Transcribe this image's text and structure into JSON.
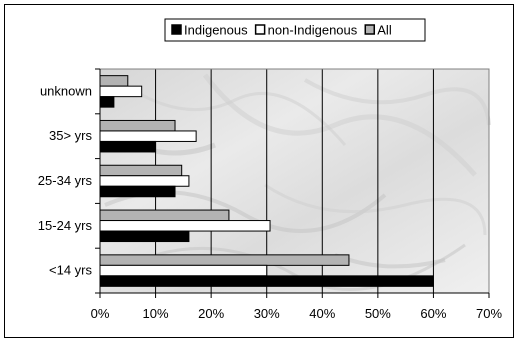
{
  "chart_data": {
    "type": "bar",
    "orientation": "horizontal",
    "categories": [
      "unknown",
      "35> yrs",
      "25-34 yrs",
      "15-24 yrs",
      "<14 yrs"
    ],
    "series": [
      {
        "name": "Indigenous",
        "color": "#000000",
        "values": [
          2.5,
          10,
          13.5,
          16,
          60
        ]
      },
      {
        "name": "non-Indigenous",
        "color": "#ffffff",
        "values": [
          7.5,
          17.3,
          16,
          30.6,
          30
        ]
      },
      {
        "name": "All",
        "color": "#b3b3b3",
        "values": [
          5,
          13.5,
          14.7,
          23.2,
          44.8
        ]
      }
    ],
    "x_ticks": [
      "0%",
      "10%",
      "20%",
      "30%",
      "40%",
      "50%",
      "60%",
      "70%"
    ],
    "xlim": [
      0,
      70
    ],
    "title": "",
    "xlabel": "",
    "ylabel": "",
    "grid": "vertical",
    "legend_position": "top-center"
  }
}
